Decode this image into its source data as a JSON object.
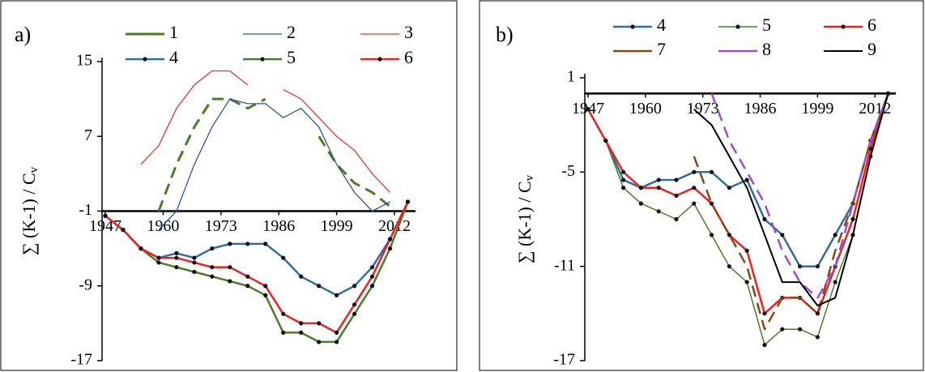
{
  "chart_data": [
    {
      "type": "line",
      "panel_label": "a)",
      "ylabel": "∑ (K-1) / C",
      "ylabel_sub": "v",
      "xlim": [
        1947,
        2016
      ],
      "xticks": [
        1947,
        1960,
        1973,
        1986,
        1999,
        2012
      ],
      "ylim": [
        -17,
        15
      ],
      "yticks": [
        15,
        7,
        -1,
        -9,
        -17
      ],
      "xaxis_cross": -1,
      "x": [
        1947,
        1951,
        1955,
        1959,
        1963,
        1967,
        1971,
        1975,
        1979,
        1983,
        1987,
        1991,
        1995,
        1999,
        2003,
        2007,
        2011,
        2015
      ],
      "series": [
        {
          "name": "1",
          "color": "#4e7a2a",
          "dash": true,
          "markers": false,
          "width": 3,
          "values": [
            null,
            null,
            null,
            -1,
            4,
            8,
            11,
            11,
            10,
            11,
            null,
            null,
            7,
            4,
            2,
            1,
            -0.5,
            null
          ]
        },
        {
          "name": "2",
          "color": "#2f5597",
          "dash": false,
          "markers": false,
          "width": 1.3,
          "values": [
            null,
            null,
            null,
            -3,
            -1,
            4,
            8,
            11,
            10.5,
            10.5,
            9,
            10,
            8,
            4,
            1,
            -1,
            0,
            null
          ]
        },
        {
          "name": "3",
          "color": "#f03030",
          "dash": false,
          "markers": false,
          "width": 1.3,
          "values": [
            null,
            null,
            4,
            6,
            10,
            12.5,
            14,
            14,
            12.5,
            null,
            12,
            11,
            9,
            7,
            5.5,
            3,
            1,
            null
          ]
        },
        {
          "name": "4",
          "color": "#2e6ea6",
          "dash": false,
          "markers": true,
          "width": 2.5,
          "values": [
            -1.5,
            -3,
            -5,
            -6,
            -5.5,
            -6,
            -5,
            -4.5,
            -4.5,
            -4.5,
            -6,
            -8,
            -9,
            -10,
            -9,
            -7,
            -4,
            0
          ]
        },
        {
          "name": "5",
          "color": "#4e7a2a",
          "dash": false,
          "markers": true,
          "width": 2.5,
          "values": [
            -1.5,
            -3,
            -5,
            -6.5,
            -7,
            -7.5,
            -8,
            -8.5,
            -9,
            -10,
            -14,
            -14,
            -15,
            -15,
            -12,
            -9,
            -5,
            0
          ]
        },
        {
          "name": "6",
          "color": "#f02020",
          "dash": false,
          "markers": true,
          "width": 2.5,
          "values": [
            -1.5,
            -3,
            -5,
            -6,
            -6,
            -6.5,
            -7,
            -7,
            -8,
            -9,
            -12,
            -13,
            -13,
            -14,
            -11,
            -8,
            -4,
            0
          ]
        }
      ]
    },
    {
      "type": "line",
      "panel_label": "b)",
      "ylabel": "∑ (K-1) / C",
      "ylabel_sub": "v",
      "xlim": [
        1947,
        2016
      ],
      "xticks": [
        1947,
        1960,
        1973,
        1986,
        1999,
        2012
      ],
      "ylim": [
        -17,
        1
      ],
      "yticks": [
        1,
        -5,
        -11,
        -17
      ],
      "xaxis_cross": 0,
      "x": [
        1947,
        1951,
        1955,
        1959,
        1963,
        1967,
        1971,
        1975,
        1979,
        1983,
        1987,
        1991,
        1995,
        1999,
        2003,
        2007,
        2011,
        2015
      ],
      "series": [
        {
          "name": "4",
          "color": "#2e6ea6",
          "dash": false,
          "markers": true,
          "width": 2.5,
          "values": [
            -1,
            -3,
            -5.5,
            -6,
            -5.5,
            -5.5,
            -5,
            -5,
            -6,
            -5.5,
            -8,
            -9,
            -11,
            -11,
            -9,
            -7,
            -3,
            0
          ]
        },
        {
          "name": "5",
          "color": "#4e7a2a",
          "dash": false,
          "markers": true,
          "width": 1.5,
          "values": [
            -1,
            -3,
            -6,
            -7,
            -7.5,
            -8,
            -7,
            -9,
            -11,
            -12,
            -16,
            -15,
            -15,
            -15.5,
            -12,
            -9,
            -4,
            0
          ]
        },
        {
          "name": "6",
          "color": "#f02020",
          "dash": false,
          "markers": true,
          "width": 2.5,
          "values": [
            -1,
            -3,
            -5,
            -6,
            -6,
            -6.5,
            -6,
            -7,
            -9,
            -10,
            -14,
            -13,
            -13,
            -14,
            -11,
            -8,
            -3.5,
            0
          ]
        },
        {
          "name": "7",
          "color": "#8b4513",
          "dash": true,
          "markers": false,
          "width": 2.5,
          "values": [
            null,
            null,
            null,
            null,
            null,
            null,
            -4,
            -7,
            -9,
            -11,
            -15,
            -13,
            -13,
            -14,
            -10,
            -7,
            -3,
            0
          ]
        },
        {
          "name": "8",
          "color": "#9b4fd0",
          "dash": true,
          "markers": false,
          "width": 2.5,
          "values": [
            null,
            null,
            null,
            null,
            null,
            null,
            null,
            0,
            -3,
            -5,
            -7,
            -10,
            -12,
            -13,
            -11,
            -7,
            -3,
            0
          ]
        },
        {
          "name": "9",
          "color": "#000000",
          "dash": false,
          "markers": false,
          "width": 2,
          "values": [
            null,
            null,
            null,
            null,
            null,
            null,
            -1,
            -2,
            -4,
            -6,
            -9,
            -12,
            -12,
            -13.5,
            -13,
            -9,
            -4,
            0
          ]
        }
      ]
    }
  ]
}
